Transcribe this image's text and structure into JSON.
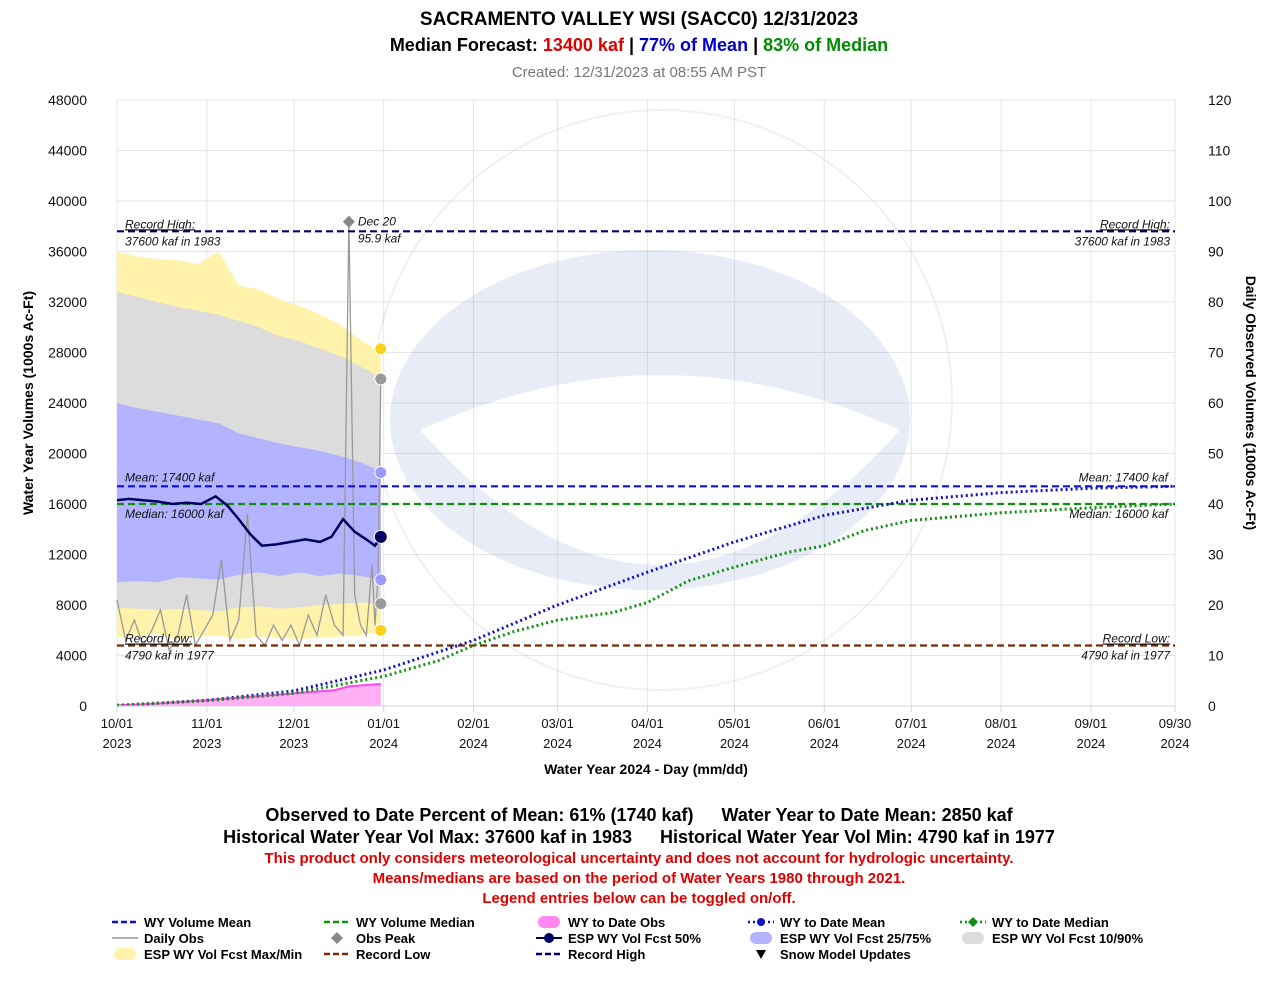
{
  "header": {
    "title": "SACRAMENTO VALLEY WSI (SACC0)  12/31/2023",
    "forecast_label": "Median Forecast:",
    "forecast_kaf": "13400 kaf",
    "forecast_sep1": "|",
    "forecast_pct_mean": "77% of Mean",
    "forecast_sep2": "|",
    "forecast_pct_median": "83% of Median",
    "created": "Created: 12/31/2023 at 08:55 AM PST"
  },
  "colors": {
    "mean": "#1010c8",
    "median": "#109010",
    "obs": "#ff44ee",
    "obs_fill": "#ffb0f4",
    "daily": "#999999",
    "fcst50": "#000060",
    "band25_75": "#b3b3ff",
    "band10_90": "#dcdcdc",
    "band_maxmin": "#fff2aa",
    "record_low": "#7a2a00",
    "record_high": "#000070",
    "red_text": "#e00000",
    "mean_text": "#0000c8",
    "median_text": "#008c00"
  },
  "chart_data": {
    "type": "line",
    "xlabel": "Water Year 2024 - Day (mm/dd)",
    "ylabel": "Water Year Volumes (1000s Ac-Ft)",
    "y2label": "Daily Observed Volumes (1000s Ac-Ft)",
    "ylim": [
      0,
      48000
    ],
    "y2lim": [
      0,
      120
    ],
    "yticks": [
      0,
      4000,
      8000,
      12000,
      16000,
      20000,
      24000,
      28000,
      32000,
      36000,
      40000,
      44000,
      48000
    ],
    "y2ticks": [
      0,
      10,
      20,
      30,
      40,
      50,
      60,
      70,
      80,
      90,
      100,
      110,
      120
    ],
    "xlim": [
      "2023-10-01",
      "2024-09-30"
    ],
    "xticks": [
      {
        "date": "2023-10-01",
        "l1": "10/01",
        "l2": "2023"
      },
      {
        "date": "2023-11-01",
        "l1": "11/01",
        "l2": "2023"
      },
      {
        "date": "2023-12-01",
        "l1": "12/01",
        "l2": "2023"
      },
      {
        "date": "2024-01-01",
        "l1": "01/01",
        "l2": "2024"
      },
      {
        "date": "2024-02-01",
        "l1": "02/01",
        "l2": "2024"
      },
      {
        "date": "2024-03-01",
        "l1": "03/01",
        "l2": "2024"
      },
      {
        "date": "2024-04-01",
        "l1": "04/01",
        "l2": "2024"
      },
      {
        "date": "2024-05-01",
        "l1": "05/01",
        "l2": "2024"
      },
      {
        "date": "2024-06-01",
        "l1": "06/01",
        "l2": "2024"
      },
      {
        "date": "2024-07-01",
        "l1": "07/01",
        "l2": "2024"
      },
      {
        "date": "2024-08-01",
        "l1": "08/01",
        "l2": "2024"
      },
      {
        "date": "2024-09-01",
        "l1": "09/01",
        "l2": "2024"
      },
      {
        "date": "2024-09-30",
        "l1": "09/30",
        "l2": "2024"
      }
    ],
    "reference_lines": [
      {
        "name": "Record High",
        "value": 37600,
        "label1": "Record High:",
        "label2": "37600 kaf in 1983"
      },
      {
        "name": "Mean",
        "value": 17400,
        "label1": "Mean: 17400 kaf"
      },
      {
        "name": "Median",
        "value": 16000,
        "label1": "Median: 16000 kaf"
      },
      {
        "name": "Record Low",
        "value": 4790,
        "label1": "Record Low:",
        "label2": "4790 kaf in 1977"
      }
    ],
    "obs_peak": {
      "date": "2023-12-20",
      "value_kaf_day": 95.9,
      "label1": "Dec 20",
      "label2": "95.9 kaf"
    },
    "bands": {
      "dates": [
        "2023-10-01",
        "2023-10-08",
        "2023-10-15",
        "2023-10-22",
        "2023-10-29",
        "2023-11-05",
        "2023-11-12",
        "2023-11-19",
        "2023-11-26",
        "2023-12-03",
        "2023-12-10",
        "2023-12-17",
        "2023-12-24",
        "2023-12-31"
      ],
      "max": [
        36000,
        35600,
        35400,
        35300,
        35000,
        36000,
        33300,
        33000,
        32200,
        31700,
        31000,
        30200,
        29000,
        28000
      ],
      "p90": [
        32800,
        32400,
        32000,
        31600,
        31300,
        31000,
        30500,
        30000,
        29300,
        28900,
        28300,
        27700,
        26900,
        26000
      ],
      "p75": [
        24000,
        23600,
        23300,
        23000,
        22700,
        22400,
        21600,
        21200,
        20800,
        20500,
        20200,
        19800,
        19300,
        18600
      ],
      "p25": [
        9800,
        9900,
        9800,
        10200,
        10100,
        10000,
        10400,
        10600,
        10300,
        10600,
        10300,
        10500,
        10300,
        10000
      ],
      "p10": [
        7800,
        7700,
        7600,
        7700,
        7600,
        7500,
        7800,
        7900,
        7700,
        7800,
        8000,
        8100,
        8200,
        8100
      ],
      "min": [
        5400,
        5600,
        5700,
        5300,
        5500,
        5600,
        5300,
        5500,
        5400,
        5300,
        5400,
        5500,
        5600,
        5900
      ]
    },
    "fcst50": {
      "dates": [
        "2023-10-01",
        "2023-10-05",
        "2023-10-10",
        "2023-10-15",
        "2023-10-20",
        "2023-10-25",
        "2023-10-30",
        "2023-11-04",
        "2023-11-08",
        "2023-11-12",
        "2023-11-16",
        "2023-11-20",
        "2023-11-25",
        "2023-11-30",
        "2023-12-05",
        "2023-12-10",
        "2023-12-14",
        "2023-12-18",
        "2023-12-22",
        "2023-12-26",
        "2023-12-29",
        "2023-12-31"
      ],
      "values": [
        16300,
        16400,
        16300,
        16200,
        16000,
        16100,
        16000,
        16600,
        15900,
        14800,
        13600,
        12700,
        12800,
        13000,
        13200,
        13000,
        13400,
        14800,
        13800,
        13200,
        12700,
        13400
      ]
    },
    "daily_obs": {
      "dates": [
        "2023-10-01",
        "2023-10-04",
        "2023-10-07",
        "2023-10-10",
        "2023-10-13",
        "2023-10-16",
        "2023-10-19",
        "2023-10-22",
        "2023-10-25",
        "2023-10-28",
        "2023-10-31",
        "2023-11-03",
        "2023-11-06",
        "2023-11-09",
        "2023-11-12",
        "2023-11-15",
        "2023-11-18",
        "2023-11-21",
        "2023-11-24",
        "2023-11-27",
        "2023-11-30",
        "2023-12-03",
        "2023-12-06",
        "2023-12-09",
        "2023-12-12",
        "2023-12-15",
        "2023-12-18",
        "2023-12-20",
        "2023-12-22",
        "2023-12-24",
        "2023-12-26",
        "2023-12-28",
        "2023-12-29",
        "2023-12-30",
        "2023-12-31"
      ],
      "values": [
        21,
        13,
        17,
        12,
        15,
        19,
        11,
        14,
        22,
        12,
        15,
        18,
        29,
        13,
        17,
        38,
        14,
        12,
        16,
        13,
        16,
        12,
        18,
        14,
        22,
        16,
        14,
        95.9,
        22,
        16,
        14,
        28,
        16,
        25,
        65
      ]
    },
    "wy_obs": {
      "dates": [
        "2023-10-01",
        "2023-10-15",
        "2023-11-01",
        "2023-11-15",
        "2023-12-01",
        "2023-12-15",
        "2023-12-20",
        "2023-12-25",
        "2023-12-31"
      ],
      "values": [
        50,
        200,
        450,
        720,
        1000,
        1250,
        1550,
        1650,
        1740
      ]
    },
    "wy_mean": {
      "dates": [
        "2023-10-01",
        "2023-11-01",
        "2023-12-01",
        "2024-01-01",
        "2024-02-01",
        "2024-03-01",
        "2024-04-01",
        "2024-05-01",
        "2024-06-01",
        "2024-07-01",
        "2024-08-01",
        "2024-09-01",
        "2024-09-30"
      ],
      "values": [
        50,
        450,
        1200,
        2850,
        5200,
        8000,
        10600,
        13000,
        15100,
        16300,
        16900,
        17250,
        17400
      ]
    },
    "wy_median": {
      "dates": [
        "2023-10-01",
        "2023-11-01",
        "2023-12-01",
        "2024-01-01",
        "2024-01-20",
        "2024-02-01",
        "2024-02-15",
        "2024-03-01",
        "2024-03-20",
        "2024-04-01",
        "2024-04-15",
        "2024-05-01",
        "2024-05-15",
        "2024-05-20",
        "2024-06-01",
        "2024-06-15",
        "2024-07-01",
        "2024-08-01",
        "2024-09-01",
        "2024-09-30"
      ],
      "values": [
        50,
        420,
        1000,
        2350,
        3600,
        4800,
        5900,
        6800,
        7400,
        8200,
        9900,
        11000,
        11900,
        12200,
        12700,
        13900,
        14700,
        15300,
        15700,
        16000
      ]
    },
    "end_markers": {
      "date": "2023-12-31",
      "max": 28300,
      "p90": 25900,
      "p75": 18500,
      "p50": 13400,
      "p25": 10000,
      "p10": 8100,
      "min": 6000
    }
  },
  "footer": {
    "obs_pct_mean": "Observed to Date Percent of Mean: 61% (1740 kaf)",
    "wy_to_date_mean": "Water Year to Date Mean: 2850 kaf",
    "hist_max": "Historical Water Year Vol Max: 37600 kaf in 1983",
    "hist_min": "Historical Water Year Vol Min: 4790 kaf in 1977",
    "note1": "This product only considers meteorological uncertainty and does not account for hydrologic uncertainty.",
    "note2": "Means/medians are based on the period of Water Years 1980 through 2021.",
    "note3": "Legend entries below can be toggled on/off."
  },
  "legend": [
    {
      "id": "wy-volume-mean",
      "label": "WY Volume Mean",
      "icon": "dashed-line-blue"
    },
    {
      "id": "wy-volume-median",
      "label": "WY Volume Median",
      "icon": "dashed-line-green"
    },
    {
      "id": "wy-to-date-obs",
      "label": "WY to Date Obs",
      "icon": "magenta-fill"
    },
    {
      "id": "wy-to-date-mean",
      "label": "WY to Date Mean",
      "icon": "dotted-blue-dot"
    },
    {
      "id": "wy-to-date-median",
      "label": "WY to Date Median",
      "icon": "dotted-green-diamond"
    },
    {
      "id": "daily-obs",
      "label": "Daily Obs",
      "icon": "gray-line"
    },
    {
      "id": "obs-peak",
      "label": "Obs Peak",
      "icon": "gray-diamond"
    },
    {
      "id": "esp-wy-vol-fcst-50",
      "label": "ESP WY Vol Fcst 50%",
      "icon": "navy-line-dot"
    },
    {
      "id": "esp-wy-vol-fcst-25-75",
      "label": "ESP WY Vol Fcst 25/75%",
      "icon": "lavender-blob"
    },
    {
      "id": "esp-wy-vol-fcst-10-90",
      "label": "ESP WY Vol Fcst 10/90%",
      "icon": "gray-blob"
    },
    {
      "id": "esp-wy-vol-fcst-max-min",
      "label": "ESP WY Vol Fcst Max/Min",
      "icon": "yellow-blob"
    },
    {
      "id": "record-low",
      "label": "Record Low",
      "icon": "dashed-line-brown"
    },
    {
      "id": "record-high",
      "label": "Record High",
      "icon": "dashed-line-navy"
    },
    {
      "id": "snow-model-updates",
      "label": "Snow Model Updates",
      "icon": "black-triangle"
    }
  ]
}
